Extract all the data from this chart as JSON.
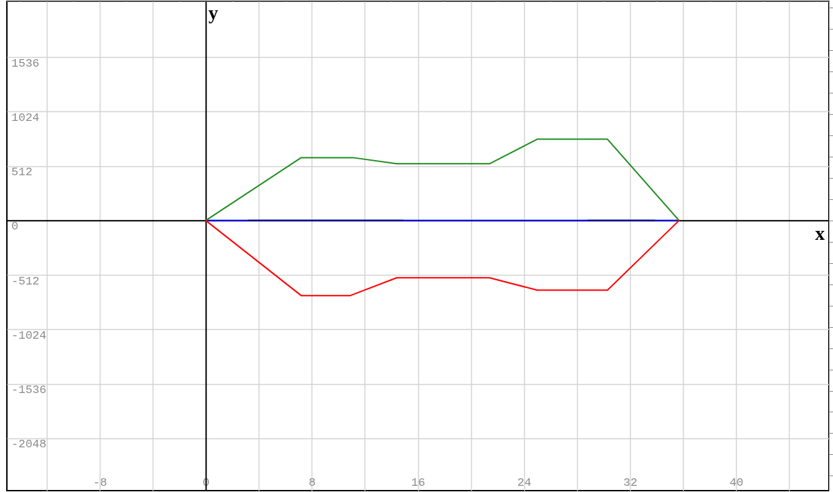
{
  "chart_data": {
    "type": "line",
    "xlabel": "x",
    "ylabel": "y",
    "xlim": [
      -15,
      47
    ],
    "ylim": [
      -2540,
      2060
    ],
    "xticks": [
      {
        "value": -12,
        "label": null
      },
      -8,
      {
        "value": -4,
        "label": null
      },
      0,
      {
        "value": 4,
        "label": null
      },
      8,
      {
        "value": 12,
        "label": null
      },
      16,
      {
        "value": 20,
        "label": null
      },
      24,
      {
        "value": 28,
        "label": null
      },
      32,
      {
        "value": 36,
        "label": null
      },
      40,
      {
        "value": 44,
        "label": null
      }
    ],
    "yticks": [
      -2048,
      -1536,
      -1024,
      -512,
      0,
      512,
      1024,
      1536
    ],
    "grid": true,
    "line_style": "solid",
    "marker": "none",
    "series": [
      {
        "color": "#0000ff",
        "x": [
          0,
          35.7
        ],
        "values": [
          0,
          0
        ]
      },
      {
        "color": "#00008b",
        "x": [
          3.2,
          14.9
        ],
        "values": [
          0,
          0
        ]
      },
      {
        "color": "#00008b",
        "x": [
          28.8,
          33.9
        ],
        "values": [
          0,
          0
        ]
      },
      {
        "color": "#228b22",
        "x": [
          0,
          7.2,
          11.1,
          14.4,
          21.4,
          25.0,
          30.3,
          35.7
        ],
        "values": [
          0,
          591,
          591,
          533,
          533,
          764,
          764,
          0
        ]
      },
      {
        "color": "#ff0000",
        "x": [
          0,
          7.2,
          10.9,
          14.4,
          21.4,
          25.0,
          30.3,
          35.7
        ],
        "values": [
          0,
          -706,
          -706,
          -539,
          -539,
          -655,
          -655,
          0
        ]
      }
    ]
  }
}
